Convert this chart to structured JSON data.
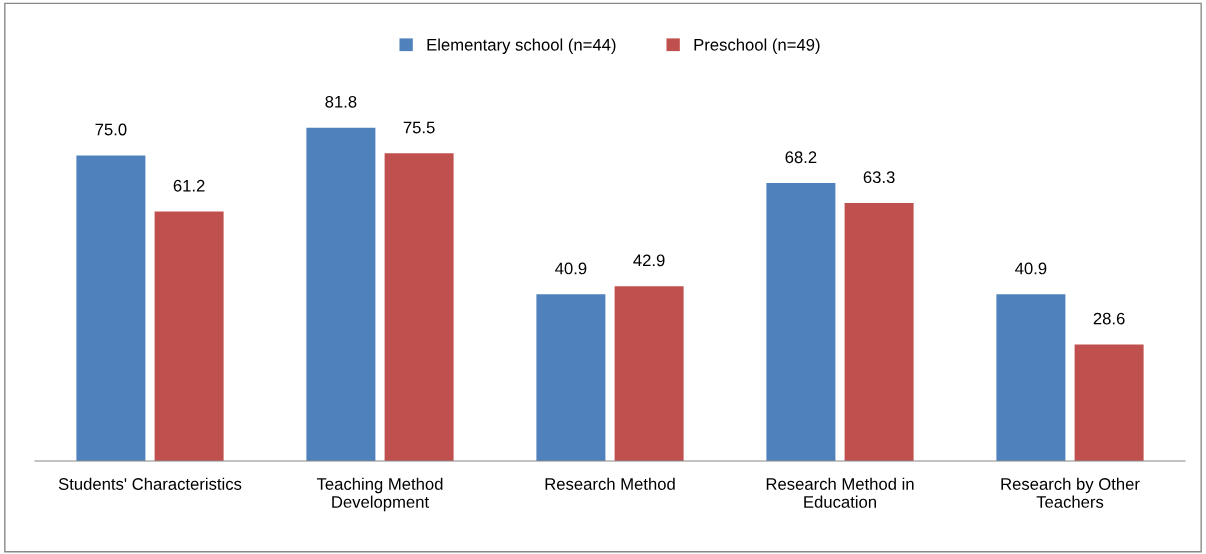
{
  "chart_data": {
    "type": "bar",
    "categories": [
      "Students' Characteristics",
      "Teaching Method\nDevelopment",
      "Research Method",
      "Research Method in\nEducation",
      "Research by Other\nTeachers"
    ],
    "series": [
      {
        "name": "Elementary school (n=44)",
        "color": "#4f81bd",
        "values": [
          75.0,
          81.8,
          40.9,
          68.2,
          40.9
        ],
        "value_labels": [
          "75.0",
          "81.8",
          "40.9",
          "68.2",
          "40.9"
        ]
      },
      {
        "name": "Preschool (n=49)",
        "color": "#c0504d",
        "values": [
          61.2,
          75.5,
          42.9,
          63.3,
          28.6
        ],
        "value_labels": [
          "61.2",
          "75.5",
          "42.9",
          "63.3",
          "28.6"
        ]
      }
    ],
    "legend": "top",
    "grid": false,
    "tick_labels": "x"
  }
}
